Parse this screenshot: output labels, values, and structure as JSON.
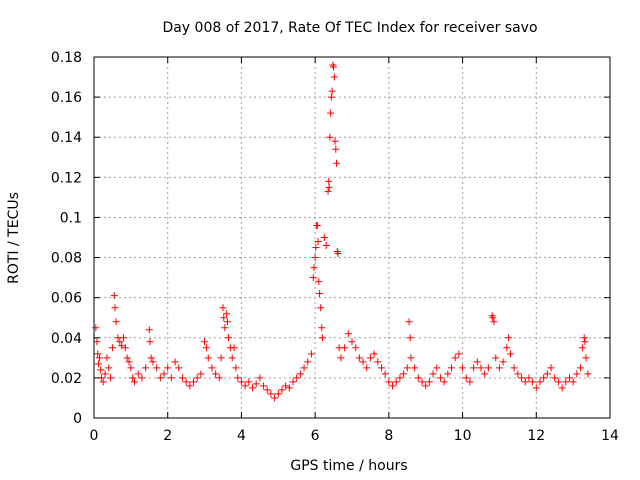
{
  "chart_data": {
    "type": "scatter",
    "title": "Day 008 of 2017, Rate Of TEC Index for receiver savo",
    "xlabel": "GPS time / hours",
    "ylabel": "ROTI / TECUs",
    "xlim": [
      0,
      14
    ],
    "ylim": [
      0,
      0.18
    ],
    "x_ticks": [
      0,
      2,
      4,
      6,
      8,
      10,
      12,
      14
    ],
    "y_ticks": [
      0,
      0.02,
      0.04,
      0.06,
      0.08,
      0.1,
      0.12,
      0.14,
      0.16,
      0.18
    ],
    "x_tick_labels": [
      "0",
      "2",
      "4",
      "6",
      "8",
      "10",
      "12",
      "14"
    ],
    "y_tick_labels": [
      "0",
      "0.02",
      "0.04",
      "0.06",
      "0.08",
      "0.1",
      "0.12",
      "0.14",
      "0.16",
      "0.18"
    ],
    "grid": true,
    "marker": "+",
    "color": "#ff0000",
    "series": [
      {
        "name": "ROTI",
        "points": [
          [
            0.05,
            0.045
          ],
          [
            0.08,
            0.038
          ],
          [
            0.1,
            0.032
          ],
          [
            0.12,
            0.027
          ],
          [
            0.15,
            0.03
          ],
          [
            0.18,
            0.024
          ],
          [
            0.2,
            0.02
          ],
          [
            0.25,
            0.018
          ],
          [
            0.3,
            0.022
          ],
          [
            0.35,
            0.03
          ],
          [
            0.4,
            0.025
          ],
          [
            0.45,
            0.02
          ],
          [
            0.5,
            0.035
          ],
          [
            0.55,
            0.061
          ],
          [
            0.57,
            0.055
          ],
          [
            0.6,
            0.048
          ],
          [
            0.65,
            0.04
          ],
          [
            0.7,
            0.038
          ],
          [
            0.75,
            0.036
          ],
          [
            0.8,
            0.04
          ],
          [
            0.85,
            0.035
          ],
          [
            0.9,
            0.03
          ],
          [
            0.95,
            0.028
          ],
          [
            1.0,
            0.025
          ],
          [
            1.05,
            0.02
          ],
          [
            1.1,
            0.018
          ],
          [
            1.2,
            0.022
          ],
          [
            1.3,
            0.02
          ],
          [
            1.4,
            0.025
          ],
          [
            1.5,
            0.044
          ],
          [
            1.52,
            0.038
          ],
          [
            1.55,
            0.03
          ],
          [
            1.6,
            0.028
          ],
          [
            1.7,
            0.025
          ],
          [
            1.8,
            0.02
          ],
          [
            1.9,
            0.022
          ],
          [
            2.0,
            0.025
          ],
          [
            2.1,
            0.02
          ],
          [
            2.2,
            0.028
          ],
          [
            2.3,
            0.025
          ],
          [
            2.4,
            0.02
          ],
          [
            2.5,
            0.018
          ],
          [
            2.6,
            0.016
          ],
          [
            2.7,
            0.018
          ],
          [
            2.8,
            0.02
          ],
          [
            2.9,
            0.022
          ],
          [
            3.0,
            0.038
          ],
          [
            3.05,
            0.035
          ],
          [
            3.1,
            0.03
          ],
          [
            3.2,
            0.025
          ],
          [
            3.3,
            0.022
          ],
          [
            3.4,
            0.02
          ],
          [
            3.45,
            0.03
          ],
          [
            3.5,
            0.055
          ],
          [
            3.52,
            0.05
          ],
          [
            3.55,
            0.045
          ],
          [
            3.6,
            0.052
          ],
          [
            3.62,
            0.048
          ],
          [
            3.65,
            0.04
          ],
          [
            3.7,
            0.035
          ],
          [
            3.75,
            0.03
          ],
          [
            3.8,
            0.035
          ],
          [
            3.85,
            0.025
          ],
          [
            3.9,
            0.02
          ],
          [
            4.0,
            0.018
          ],
          [
            4.1,
            0.016
          ],
          [
            4.2,
            0.018
          ],
          [
            4.3,
            0.015
          ],
          [
            4.4,
            0.017
          ],
          [
            4.5,
            0.02
          ],
          [
            4.6,
            0.016
          ],
          [
            4.7,
            0.014
          ],
          [
            4.8,
            0.012
          ],
          [
            4.9,
            0.01
          ],
          [
            5.0,
            0.012
          ],
          [
            5.1,
            0.014
          ],
          [
            5.2,
            0.016
          ],
          [
            5.3,
            0.015
          ],
          [
            5.4,
            0.018
          ],
          [
            5.5,
            0.02
          ],
          [
            5.6,
            0.022
          ],
          [
            5.7,
            0.025
          ],
          [
            5.8,
            0.028
          ],
          [
            5.9,
            0.032
          ],
          [
            5.95,
            0.07
          ],
          [
            5.97,
            0.075
          ],
          [
            6.0,
            0.08
          ],
          [
            6.02,
            0.085
          ],
          [
            6.04,
            0.096
          ],
          [
            6.06,
            0.096
          ],
          [
            6.08,
            0.088
          ],
          [
            6.1,
            0.068
          ],
          [
            6.12,
            0.062
          ],
          [
            6.15,
            0.055
          ],
          [
            6.18,
            0.045
          ],
          [
            6.2,
            0.04
          ],
          [
            6.25,
            0.09
          ],
          [
            6.3,
            0.086
          ],
          [
            6.35,
            0.113
          ],
          [
            6.37,
            0.118
          ],
          [
            6.38,
            0.115
          ],
          [
            6.4,
            0.14
          ],
          [
            6.42,
            0.152
          ],
          [
            6.44,
            0.16
          ],
          [
            6.46,
            0.163
          ],
          [
            6.48,
            0.176
          ],
          [
            6.5,
            0.175
          ],
          [
            6.52,
            0.17
          ],
          [
            6.54,
            0.138
          ],
          [
            6.56,
            0.134
          ],
          [
            6.58,
            0.127
          ],
          [
            6.6,
            0.083
          ],
          [
            6.62,
            0.082
          ],
          [
            6.65,
            0.035
          ],
          [
            6.7,
            0.03
          ],
          [
            6.8,
            0.035
          ],
          [
            6.9,
            0.042
          ],
          [
            7.0,
            0.038
          ],
          [
            7.1,
            0.035
          ],
          [
            7.2,
            0.03
          ],
          [
            7.3,
            0.028
          ],
          [
            7.4,
            0.025
          ],
          [
            7.5,
            0.03
          ],
          [
            7.6,
            0.032
          ],
          [
            7.7,
            0.028
          ],
          [
            7.8,
            0.025
          ],
          [
            7.9,
            0.022
          ],
          [
            8.0,
            0.018
          ],
          [
            8.1,
            0.016
          ],
          [
            8.2,
            0.018
          ],
          [
            8.3,
            0.02
          ],
          [
            8.4,
            0.022
          ],
          [
            8.5,
            0.025
          ],
          [
            8.55,
            0.048
          ],
          [
            8.58,
            0.04
          ],
          [
            8.6,
            0.03
          ],
          [
            8.7,
            0.025
          ],
          [
            8.8,
            0.02
          ],
          [
            8.9,
            0.018
          ],
          [
            9.0,
            0.016
          ],
          [
            9.1,
            0.018
          ],
          [
            9.2,
            0.022
          ],
          [
            9.3,
            0.025
          ],
          [
            9.4,
            0.02
          ],
          [
            9.5,
            0.018
          ],
          [
            9.6,
            0.022
          ],
          [
            9.7,
            0.025
          ],
          [
            9.8,
            0.03
          ],
          [
            9.9,
            0.032
          ],
          [
            10.0,
            0.025
          ],
          [
            10.1,
            0.02
          ],
          [
            10.2,
            0.018
          ],
          [
            10.3,
            0.025
          ],
          [
            10.4,
            0.028
          ],
          [
            10.5,
            0.025
          ],
          [
            10.6,
            0.022
          ],
          [
            10.7,
            0.025
          ],
          [
            10.8,
            0.051
          ],
          [
            10.82,
            0.05
          ],
          [
            10.85,
            0.048
          ],
          [
            10.9,
            0.03
          ],
          [
            11.0,
            0.025
          ],
          [
            11.1,
            0.028
          ],
          [
            11.2,
            0.035
          ],
          [
            11.25,
            0.04
          ],
          [
            11.3,
            0.032
          ],
          [
            11.4,
            0.025
          ],
          [
            11.5,
            0.022
          ],
          [
            11.6,
            0.02
          ],
          [
            11.7,
            0.018
          ],
          [
            11.8,
            0.02
          ],
          [
            11.9,
            0.018
          ],
          [
            12.0,
            0.015
          ],
          [
            12.1,
            0.018
          ],
          [
            12.2,
            0.02
          ],
          [
            12.3,
            0.022
          ],
          [
            12.4,
            0.025
          ],
          [
            12.5,
            0.02
          ],
          [
            12.6,
            0.018
          ],
          [
            12.7,
            0.015
          ],
          [
            12.8,
            0.018
          ],
          [
            12.9,
            0.02
          ],
          [
            13.0,
            0.018
          ],
          [
            13.1,
            0.022
          ],
          [
            13.2,
            0.025
          ],
          [
            13.25,
            0.035
          ],
          [
            13.3,
            0.04
          ],
          [
            13.32,
            0.038
          ],
          [
            13.35,
            0.03
          ],
          [
            13.4,
            0.022
          ]
        ]
      }
    ]
  }
}
